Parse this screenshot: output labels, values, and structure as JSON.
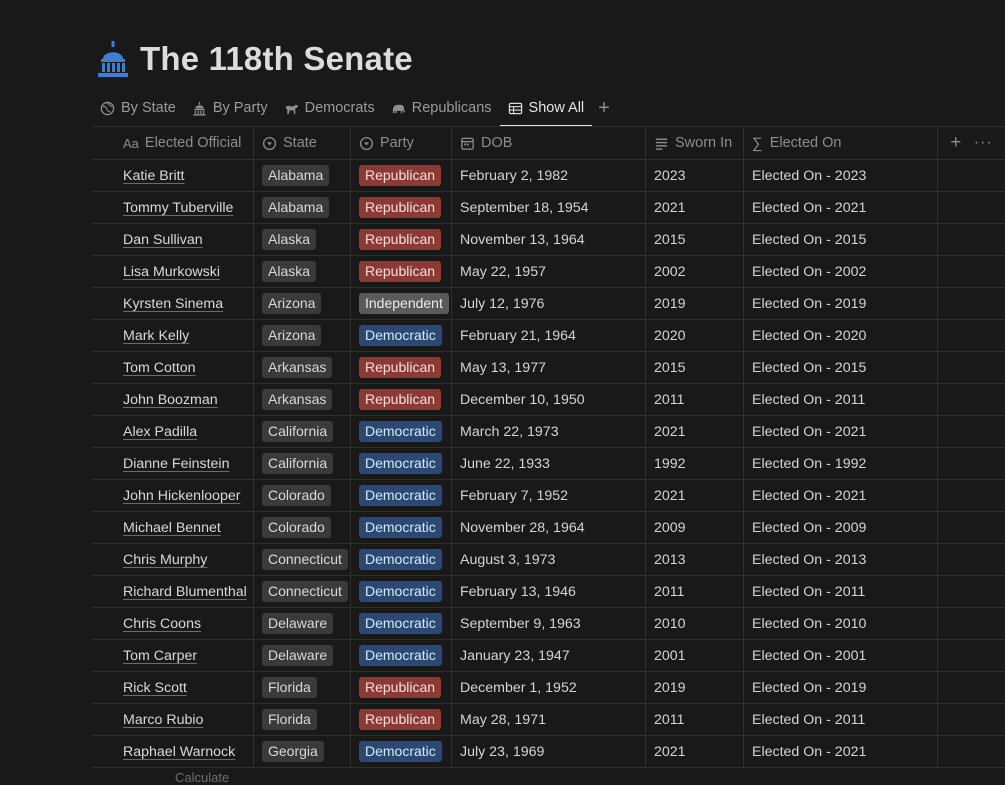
{
  "page": {
    "title": "The 118th Senate"
  },
  "tabs": [
    {
      "label": "By State",
      "icon": "globe-icon",
      "active": false
    },
    {
      "label": "By Party",
      "icon": "capitol-icon",
      "active": false
    },
    {
      "label": "Democrats",
      "icon": "donkey-icon",
      "active": false
    },
    {
      "label": "Republicans",
      "icon": "elephant-icon",
      "active": false
    },
    {
      "label": "Show All",
      "icon": "table-icon",
      "active": true
    }
  ],
  "table": {
    "columns": [
      {
        "label": "Elected Official",
        "icon": "text-type-icon"
      },
      {
        "label": "State",
        "icon": "select-icon"
      },
      {
        "label": "Party",
        "icon": "select-icon"
      },
      {
        "label": "DOB",
        "icon": "calendar-icon"
      },
      {
        "label": "Sworn In",
        "icon": "lines-icon"
      },
      {
        "label": "Elected On",
        "icon": "sigma-icon"
      }
    ],
    "colors": {
      "Republican": "#8e3a34",
      "Democratic": "#2b4a73",
      "Independent": "#5a5a5a"
    },
    "rows": [
      {
        "name": "Katie Britt",
        "state": "Alabama",
        "party": "Republican",
        "dob": "February 2, 1982",
        "sworn": "2023",
        "elected": "Elected On - 2023"
      },
      {
        "name": "Tommy Tuberville",
        "state": "Alabama",
        "party": "Republican",
        "dob": "September 18, 1954",
        "sworn": "2021",
        "elected": "Elected On - 2021"
      },
      {
        "name": "Dan Sullivan",
        "state": "Alaska",
        "party": "Republican",
        "dob": "November 13, 1964",
        "sworn": "2015",
        "elected": "Elected On - 2015"
      },
      {
        "name": "Lisa Murkowski",
        "state": "Alaska",
        "party": "Republican",
        "dob": "May 22, 1957",
        "sworn": "2002",
        "elected": "Elected On - 2002"
      },
      {
        "name": "Kyrsten Sinema",
        "state": "Arizona",
        "party": "Independent",
        "dob": "July 12, 1976",
        "sworn": "2019",
        "elected": "Elected On - 2019"
      },
      {
        "name": "Mark Kelly",
        "state": "Arizona",
        "party": "Democratic",
        "dob": "February 21, 1964",
        "sworn": "2020",
        "elected": "Elected On - 2020"
      },
      {
        "name": "Tom Cotton",
        "state": "Arkansas",
        "party": "Republican",
        "dob": "May 13, 1977",
        "sworn": "2015",
        "elected": "Elected On - 2015"
      },
      {
        "name": "John Boozman",
        "state": "Arkansas",
        "party": "Republican",
        "dob": "December 10, 1950",
        "sworn": "2011",
        "elected": "Elected On - 2011"
      },
      {
        "name": "Alex Padilla",
        "state": "California",
        "party": "Democratic",
        "dob": "March 22, 1973",
        "sworn": "2021",
        "elected": "Elected On - 2021"
      },
      {
        "name": "Dianne Feinstein",
        "state": "California",
        "party": "Democratic",
        "dob": "June 22, 1933",
        "sworn": "1992",
        "elected": "Elected On - 1992"
      },
      {
        "name": "John Hickenlooper",
        "state": "Colorado",
        "party": "Democratic",
        "dob": "February 7, 1952",
        "sworn": "2021",
        "elected": "Elected On - 2021"
      },
      {
        "name": "Michael Bennet",
        "state": "Colorado",
        "party": "Democratic",
        "dob": "November 28, 1964",
        "sworn": "2009",
        "elected": "Elected On - 2009"
      },
      {
        "name": "Chris Murphy",
        "state": "Connecticut",
        "party": "Democratic",
        "dob": "August 3, 1973",
        "sworn": "2013",
        "elected": "Elected On - 2013"
      },
      {
        "name": "Richard Blumenthal",
        "state": "Connecticut",
        "party": "Democratic",
        "dob": "February 13, 1946",
        "sworn": "2011",
        "elected": "Elected On - 2011"
      },
      {
        "name": "Chris Coons",
        "state": "Delaware",
        "party": "Democratic",
        "dob": "September 9, 1963",
        "sworn": "2010",
        "elected": "Elected On - 2010"
      },
      {
        "name": "Tom Carper",
        "state": "Delaware",
        "party": "Democratic",
        "dob": "January 23, 1947",
        "sworn": "2001",
        "elected": "Elected On - 2001"
      },
      {
        "name": "Rick Scott",
        "state": "Florida",
        "party": "Republican",
        "dob": "December 1, 1952",
        "sworn": "2019",
        "elected": "Elected On - 2019"
      },
      {
        "name": "Marco Rubio",
        "state": "Florida",
        "party": "Republican",
        "dob": "May 28, 1971",
        "sworn": "2011",
        "elected": "Elected On - 2011"
      },
      {
        "name": "Raphael Warnock",
        "state": "Georgia",
        "party": "Democratic",
        "dob": "July 23, 1969",
        "sworn": "2021",
        "elected": "Elected On - 2021"
      }
    ]
  },
  "footer": {
    "calculate_label": "Calculate"
  }
}
